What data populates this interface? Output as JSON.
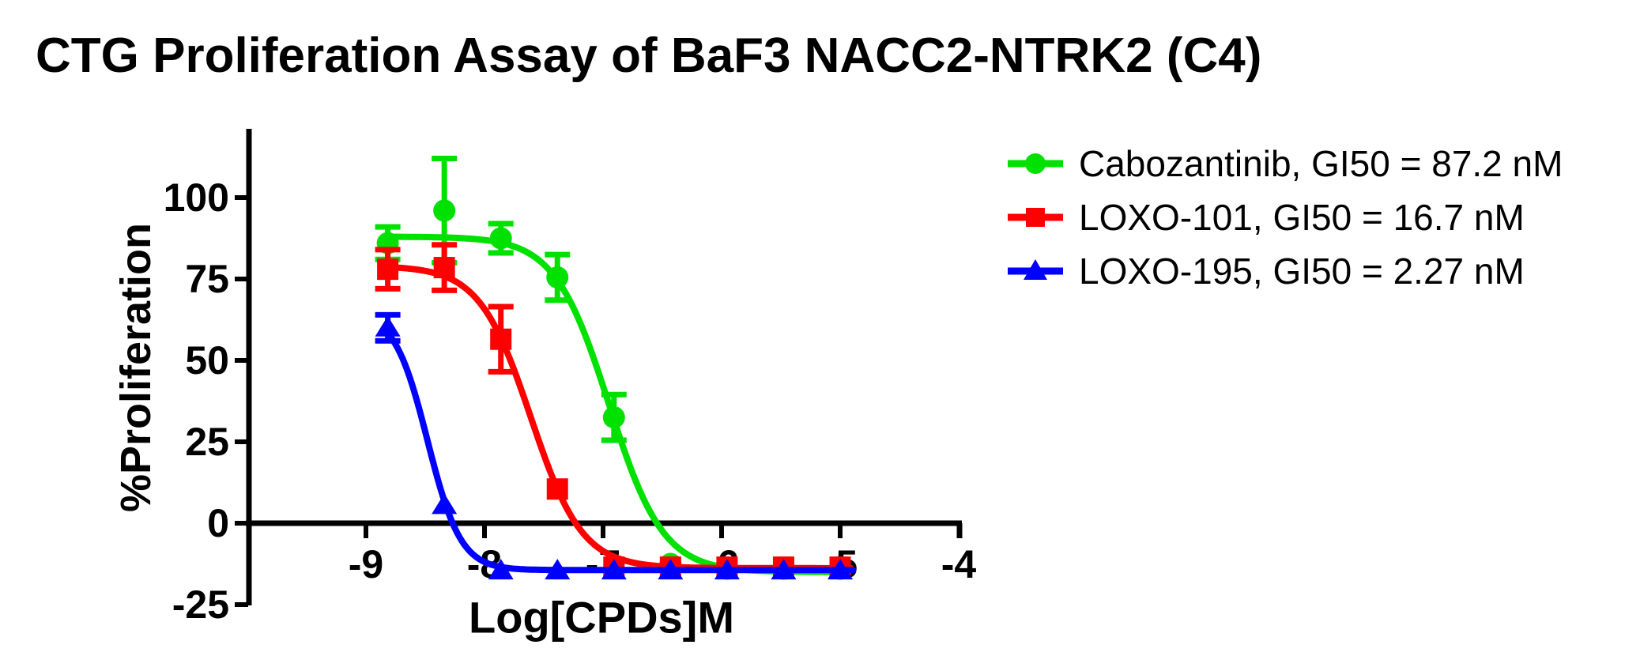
{
  "title": "CTG Proliferation Assay of BaF3 NACC2-NTRK2 (C4)",
  "background_color": "#FFFFFF",
  "axis_color": "#000000",
  "chart_data": {
    "type": "line",
    "title": "CTG Proliferation Assay of BaF3 NACC2-NTRK2 (C4)",
    "xlabel": "Log[CPDs]M",
    "ylabel": "%Proliferation",
    "xlim": [
      -10,
      -3.97
    ],
    "ylim": [
      -25,
      121
    ],
    "x_ticks": [
      -9,
      -8,
      -7,
      -6,
      -5,
      -4
    ],
    "y_ticks": [
      100,
      75,
      50,
      25,
      0,
      -25
    ],
    "grid": false,
    "legend_position": "right-of-plot",
    "series": [
      {
        "name": "Cabozantinib",
        "gi50": "87.2 nM",
        "legend_label": "Cabozantinib, GI50 = 87.2 nM",
        "color": "#00E100",
        "marker": "circle",
        "x": [
          -8.816,
          -8.339,
          -7.862,
          -7.385,
          -6.908,
          -6.431,
          -5.954,
          -5.477,
          -5.0
        ],
        "y": [
          86,
          96,
          87.5,
          75.5,
          32.5,
          -12.5,
          -14,
          -14,
          -14
        ],
        "err": [
          5,
          16,
          4.5,
          7,
          7,
          1,
          1,
          1,
          1
        ],
        "fit": {
          "top": 88,
          "bottom": -15,
          "logec50": -6.95,
          "hill": 1.9,
          "x_start": -8.83,
          "x_end": -4.92
        }
      },
      {
        "name": "LOXO-101",
        "gi50": "16.7 nM",
        "legend_label": "LOXO-101, GI50 = 16.7 nM",
        "color": "#FF0000",
        "marker": "square",
        "x": [
          -8.816,
          -8.339,
          -7.862,
          -7.385,
          -6.908,
          -6.431,
          -5.954,
          -5.477,
          -5.0
        ],
        "y": [
          78,
          78.5,
          56.5,
          10.5,
          -13.5,
          -13.5,
          -13.5,
          -13.5,
          -13.5
        ],
        "err": [
          6,
          7,
          10,
          1,
          1,
          1,
          1,
          1,
          1
        ],
        "fit": {
          "top": 79,
          "bottom": -13.8,
          "logec50": -7.61,
          "hill": 2.0,
          "x_start": -8.83,
          "x_end": -4.9
        }
      },
      {
        "name": "LOXO-195",
        "gi50": "2.27 nM",
        "legend_label": "LOXO-195, GI50 = 2.27 nM",
        "color": "#0000FF",
        "marker": "triangle",
        "x": [
          -8.816,
          -8.339,
          -7.862,
          -7.385,
          -6.908,
          -6.431,
          -5.954,
          -5.477,
          -5.0
        ],
        "y": [
          60,
          5.5,
          -14.6,
          -14.6,
          -14.6,
          -14.6,
          -14.6,
          -14.6,
          -14.6
        ],
        "err": [
          4,
          1,
          1,
          1,
          1,
          1,
          1,
          1,
          1
        ],
        "fit": {
          "top": 65,
          "bottom": -14.4,
          "logec50": -8.48,
          "hill": 3.1,
          "x_start": -8.83,
          "x_end": -4.88
        }
      }
    ]
  }
}
